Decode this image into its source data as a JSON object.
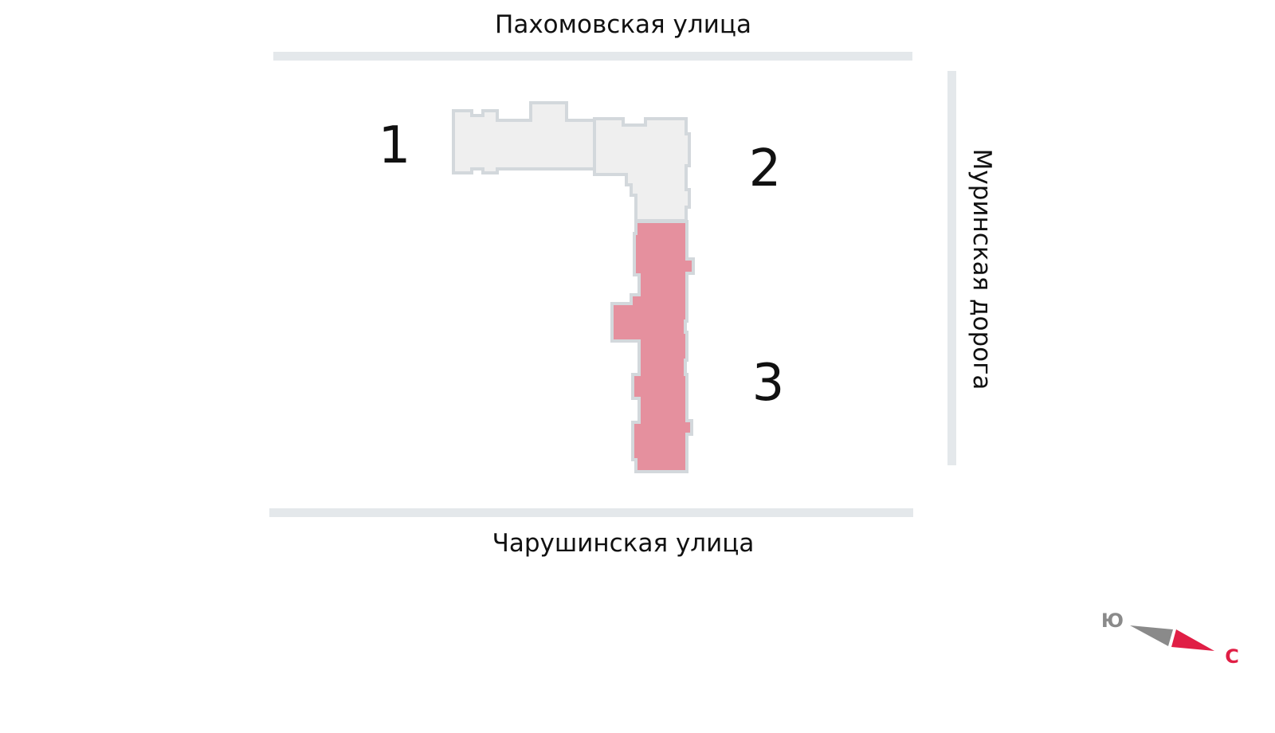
{
  "streets": {
    "top": "Пахомовская улица",
    "bottom": "Чарушинская улица",
    "right": "Муринская дорога"
  },
  "buildings": [
    {
      "number": "1",
      "selected": false
    },
    {
      "number": "2",
      "selected": false
    },
    {
      "number": "3",
      "selected": true
    }
  ],
  "colors": {
    "road": "#e4e8eb",
    "building": "#efefef",
    "building_selected": "#e5909e",
    "compass_north": "#e01e45",
    "compass_south": "#8a8a8a"
  },
  "compass": {
    "south_label": "Ю",
    "north_label": "С"
  }
}
